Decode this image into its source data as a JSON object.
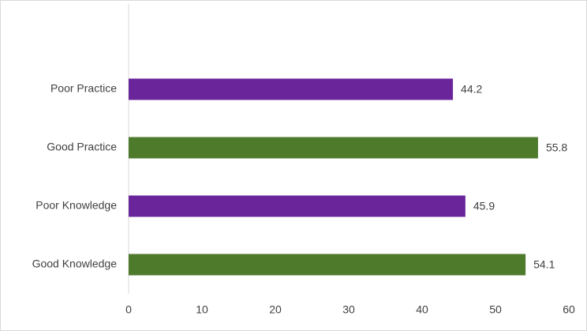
{
  "chart_data": {
    "type": "bar",
    "orientation": "horizontal",
    "categories": [
      "Good Knowledge",
      "Poor Knowledge",
      "Good Practice",
      "Poor Practice"
    ],
    "values": [
      54.1,
      45.9,
      55.8,
      44.2
    ],
    "colors": [
      "#4e7a2c",
      "#6a259a",
      "#4e7a2c",
      "#6a259a"
    ],
    "xlim": [
      0,
      60
    ],
    "xticks": [
      0,
      10,
      20,
      30,
      40,
      50,
      60
    ],
    "grid": false
  }
}
